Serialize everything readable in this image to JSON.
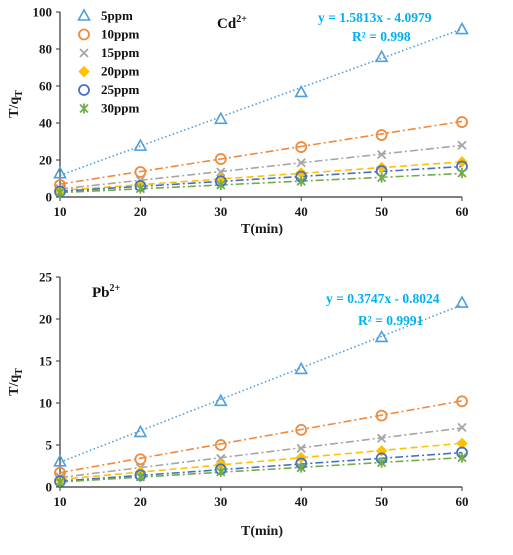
{
  "chart_data": [
    {
      "type": "scatter",
      "title": "Cd",
      "title_sup": "2+",
      "xlabel": "T(min)",
      "ylabel_main": "T/q",
      "ylabel_sub": "T",
      "xlim": [
        10,
        60
      ],
      "ylim": [
        0,
        100
      ],
      "xticks": [
        "10",
        "20",
        "30",
        "40",
        "50",
        "60"
      ],
      "yticks": [
        "0",
        "20",
        "40",
        "60",
        "80",
        "100"
      ],
      "legend_position": "top-left",
      "equation": "y = 1.5813x - 4.0979",
      "r2_label": "R² = 0.998",
      "series": [
        {
          "name": "5ppm",
          "marker": "triangle",
          "color": "#4f9fdc",
          "line_style": "dotted",
          "x": [
            10,
            20,
            30,
            40,
            50,
            60
          ],
          "y": [
            12.6,
            27.5,
            42.0,
            56.5,
            75.5,
            90.5
          ],
          "fit": [
            1.5813,
            -4.0979
          ]
        },
        {
          "name": "10ppm",
          "marker": "circle",
          "color": "#f08a3e",
          "line_style": "dashdot",
          "x": [
            10,
            20,
            30,
            40,
            50,
            60
          ],
          "y": [
            6.5,
            13.5,
            20.5,
            27.0,
            33.5,
            40.5
          ],
          "fit": [
            0.678,
            0.2
          ]
        },
        {
          "name": "15ppm",
          "marker": "x",
          "color": "#a6a6a6",
          "line_style": "dashdot",
          "x": [
            10,
            20,
            30,
            40,
            50,
            60
          ],
          "y": [
            4.5,
            9.0,
            13.5,
            18.5,
            23.0,
            28.0
          ],
          "fit": [
            0.472,
            -0.4
          ]
        },
        {
          "name": "20ppm",
          "marker": "diamond",
          "color": "#ffc000",
          "line_style": "dashed",
          "x": [
            10,
            20,
            30,
            40,
            50,
            60
          ],
          "y": [
            3.5,
            7.0,
            10.0,
            13.0,
            16.0,
            19.0
          ],
          "fit": [
            0.308,
            0.5
          ]
        },
        {
          "name": "25ppm",
          "marker": "circle",
          "color": "#4472c4",
          "line_style": "dashdot",
          "x": [
            10,
            20,
            30,
            40,
            50,
            60
          ],
          "y": [
            3.0,
            6.0,
            8.5,
            11.0,
            14.0,
            16.5
          ],
          "fit": [
            0.268,
            0.4
          ]
        },
        {
          "name": "30ppm",
          "marker": "asterisk",
          "color": "#70ad47",
          "line_style": "dashdot",
          "x": [
            10,
            20,
            30,
            40,
            50,
            60
          ],
          "y": [
            2.5,
            4.5,
            6.5,
            8.5,
            10.5,
            13.0
          ],
          "fit": [
            0.207,
            0.3
          ]
        }
      ]
    },
    {
      "type": "scatter",
      "title": "Pb",
      "title_sup": "2+",
      "xlabel": "T(min)",
      "ylabel_main": "T/q",
      "ylabel_sub": "T",
      "xlim": [
        10,
        60
      ],
      "ylim": [
        0,
        25
      ],
      "xticks": [
        "10",
        "20",
        "30",
        "40",
        "50",
        "60"
      ],
      "yticks": [
        "0",
        "5",
        "10",
        "15",
        "20",
        "25"
      ],
      "equation": "y = 0.3747x - 0.8024",
      "r2_label": "R² = 0.9991",
      "series": [
        {
          "name": "5ppm",
          "marker": "triangle",
          "color": "#4f9fdc",
          "line_style": "dotted",
          "x": [
            10,
            20,
            30,
            40,
            50,
            60
          ],
          "y": [
            3.0,
            6.5,
            10.2,
            14.0,
            17.8,
            21.9
          ],
          "fit": [
            0.3747,
            -0.8024
          ]
        },
        {
          "name": "10ppm",
          "marker": "circle",
          "color": "#f08a3e",
          "line_style": "dashdot",
          "x": [
            10,
            20,
            30,
            40,
            50,
            60
          ],
          "y": [
            1.7,
            3.3,
            5.0,
            6.8,
            8.5,
            10.2
          ],
          "fit": [
            0.171,
            0.0
          ]
        },
        {
          "name": "15ppm",
          "marker": "x",
          "color": "#a6a6a6",
          "line_style": "dashdot",
          "x": [
            10,
            20,
            30,
            40,
            50,
            60
          ],
          "y": [
            1.2,
            2.3,
            3.4,
            4.6,
            5.8,
            7.1
          ],
          "fit": [
            0.118,
            -0.05
          ]
        },
        {
          "name": "20ppm",
          "marker": "diamond",
          "color": "#ffc000",
          "line_style": "dashed",
          "x": [
            10,
            20,
            30,
            40,
            50,
            60
          ],
          "y": [
            0.9,
            1.8,
            2.7,
            3.5,
            4.3,
            5.2
          ],
          "fit": [
            0.086,
            0.05
          ]
        },
        {
          "name": "25ppm",
          "marker": "circle",
          "color": "#4472c4",
          "line_style": "dashdot",
          "x": [
            10,
            20,
            30,
            40,
            50,
            60
          ],
          "y": [
            0.7,
            1.4,
            2.1,
            2.8,
            3.4,
            4.1
          ],
          "fit": [
            0.068,
            0.02
          ]
        },
        {
          "name": "30ppm",
          "marker": "asterisk",
          "color": "#70ad47",
          "line_style": "dashdot",
          "x": [
            10,
            20,
            30,
            40,
            50,
            60
          ],
          "y": [
            0.6,
            1.2,
            1.8,
            2.3,
            2.9,
            3.5
          ],
          "fit": [
            0.058,
            0.02
          ]
        }
      ]
    }
  ],
  "colors": {
    "axis": "#333333",
    "equation": "#00b0f0"
  }
}
